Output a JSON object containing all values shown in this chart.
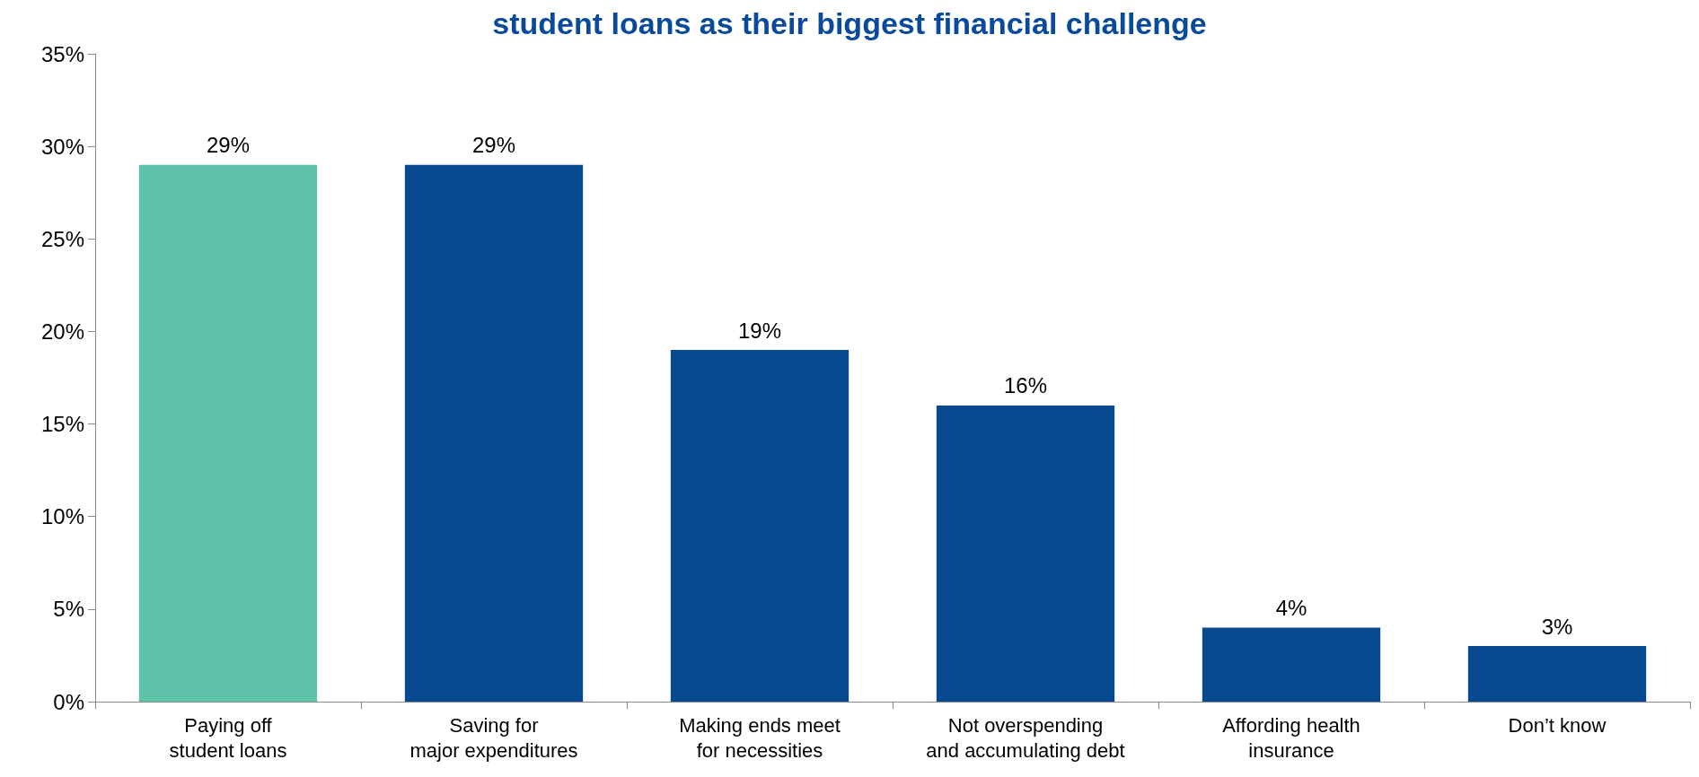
{
  "chart_data": {
    "type": "bar",
    "title": "student loans as their biggest financial challenge",
    "categories": [
      "Paying off\nstudent loans",
      "Saving for\nmajor expenditures",
      "Making ends meet\nfor necessities",
      "Not overspending\nand accumulating debt",
      "Affording health\ninsurance",
      "Don’t know"
    ],
    "values": [
      29,
      29,
      19,
      16,
      4,
      3
    ],
    "colors": [
      "#5ec3a8",
      "#074a92",
      "#074a92",
      "#074a92",
      "#074a92",
      "#074a92"
    ],
    "value_labels": [
      "29%",
      "29%",
      "19%",
      "16%",
      "4%",
      "3%"
    ],
    "ylim": [
      0,
      35
    ],
    "yticks": [
      {
        "value": 0,
        "label": "0%"
      },
      {
        "value": 5,
        "label": "5%"
      },
      {
        "value": 10,
        "label": "10%"
      },
      {
        "value": 15,
        "label": "15%"
      },
      {
        "value": 20,
        "label": "20%"
      },
      {
        "value": 25,
        "label": "25%"
      },
      {
        "value": 30,
        "label": "30%"
      },
      {
        "value": 35,
        "label": "35%"
      }
    ],
    "grid": false
  }
}
